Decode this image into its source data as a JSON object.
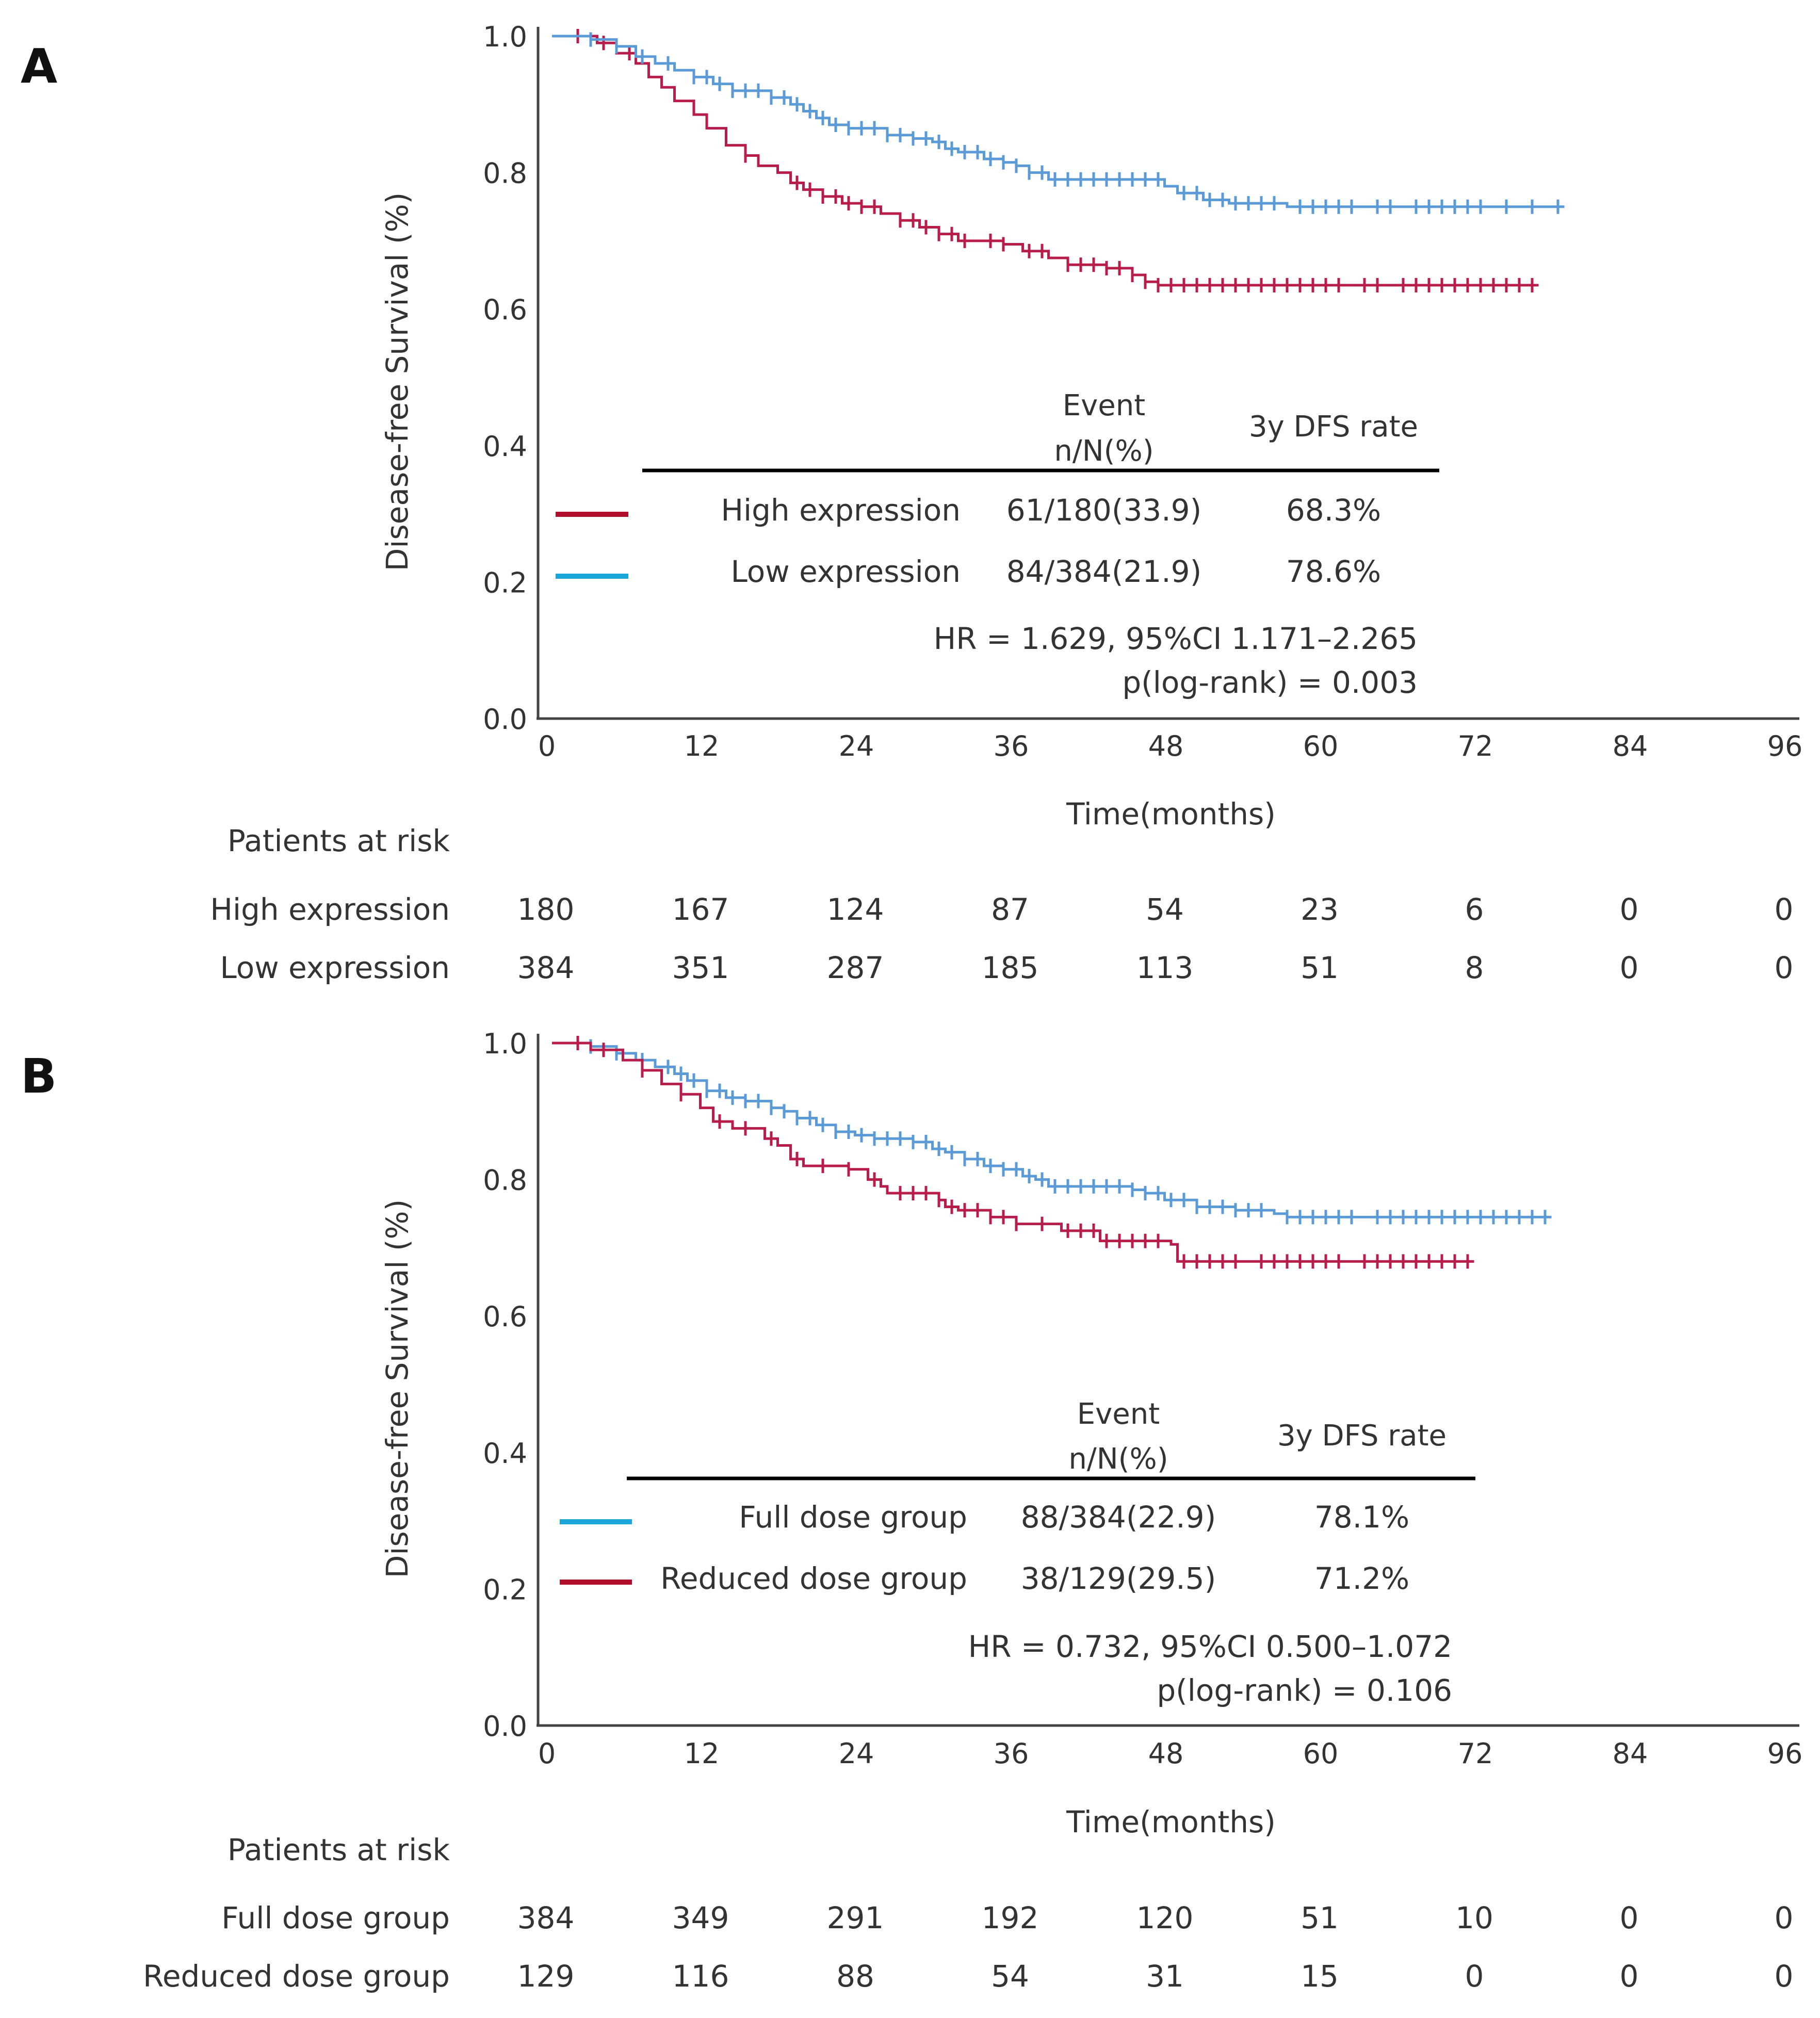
{
  "chart_data": [
    {
      "panel": "A",
      "type": "line",
      "subtype": "kaplan-meier",
      "xlabel": "Time(months)",
      "ylabel": "Disease-free Survival (%)",
      "xlim": [
        0,
        96
      ],
      "ylim": [
        0,
        1
      ],
      "xticks": [
        "0",
        "12",
        "24",
        "36",
        "48",
        "60",
        "72",
        "84",
        "96"
      ],
      "yticks": [
        "0.0",
        "0.2",
        "0.4",
        "0.6",
        "0.8",
        "1.0"
      ],
      "table_header": {
        "event": "Event",
        "event_sub": "n/N(%)",
        "rate": "3y DFS rate"
      },
      "series": [
        {
          "name": "High expression",
          "color": "#b71c4a",
          "legend_color": "#b0102e",
          "event": "61/180(33.9)",
          "rate": "68.3%",
          "steps": [
            [
              0,
              1.0
            ],
            [
              3.5,
              0.99
            ],
            [
              5,
              0.975
            ],
            [
              6.5,
              0.96
            ],
            [
              7.5,
              0.94
            ],
            [
              8.5,
              0.925
            ],
            [
              9.5,
              0.905
            ],
            [
              11,
              0.885
            ],
            [
              12,
              0.865
            ],
            [
              13.5,
              0.84
            ],
            [
              15,
              0.825
            ],
            [
              16,
              0.81
            ],
            [
              17.5,
              0.8
            ],
            [
              18.5,
              0.785
            ],
            [
              19.5,
              0.775
            ],
            [
              21,
              0.765
            ],
            [
              22.5,
              0.755
            ],
            [
              24,
              0.75
            ],
            [
              25.5,
              0.74
            ],
            [
              27,
              0.73
            ],
            [
              28.5,
              0.72
            ],
            [
              30,
              0.71
            ],
            [
              31.5,
              0.7
            ],
            [
              35,
              0.695
            ],
            [
              36.5,
              0.685
            ],
            [
              38.5,
              0.675
            ],
            [
              40,
              0.665
            ],
            [
              43,
              0.66
            ],
            [
              45,
              0.65
            ],
            [
              46,
              0.64
            ],
            [
              47,
              0.635
            ],
            [
              76.5,
              0.635
            ]
          ],
          "censors": [
            2,
            4,
            6,
            15,
            19,
            20,
            21,
            22,
            23,
            24,
            25,
            27,
            28,
            29,
            30,
            31,
            32,
            34,
            35,
            37,
            38,
            40,
            41,
            42,
            43,
            44,
            45,
            46,
            47,
            48,
            49,
            50,
            51,
            52,
            53,
            54,
            55,
            56,
            57,
            58,
            59,
            60,
            61,
            63,
            64,
            66,
            67,
            68,
            69,
            70,
            71,
            72,
            73,
            74,
            75,
            76
          ]
        },
        {
          "name": "Low expression",
          "color": "#5a9ad6",
          "legend_color": "#1aa6d8",
          "event": "84/384(21.9)",
          "rate": "78.6%",
          "steps": [
            [
              0,
              1.0
            ],
            [
              3,
              0.995
            ],
            [
              5,
              0.985
            ],
            [
              6.5,
              0.97
            ],
            [
              8,
              0.96
            ],
            [
              9.5,
              0.95
            ],
            [
              11,
              0.94
            ],
            [
              12.5,
              0.93
            ],
            [
              14,
              0.92
            ],
            [
              17,
              0.91
            ],
            [
              18.5,
              0.9
            ],
            [
              19.5,
              0.89
            ],
            [
              20.5,
              0.88
            ],
            [
              21.5,
              0.87
            ],
            [
              23,
              0.865
            ],
            [
              26,
              0.855
            ],
            [
              28,
              0.85
            ],
            [
              29.5,
              0.845
            ],
            [
              30.5,
              0.835
            ],
            [
              31.5,
              0.83
            ],
            [
              33.5,
              0.82
            ],
            [
              35,
              0.815
            ],
            [
              36,
              0.81
            ],
            [
              37,
              0.8
            ],
            [
              38.5,
              0.79
            ],
            [
              47.5,
              0.78
            ],
            [
              48.5,
              0.77
            ],
            [
              50.5,
              0.76
            ],
            [
              52.5,
              0.755
            ],
            [
              57,
              0.75
            ],
            [
              78.5,
              0.75
            ]
          ],
          "censors": [
            3,
            5,
            7,
            9,
            11,
            12,
            13,
            14,
            15,
            16,
            17,
            18,
            19,
            20,
            21,
            22,
            23,
            24,
            25,
            26,
            27,
            28,
            29,
            30,
            31,
            32,
            33,
            34,
            35,
            36,
            37,
            38,
            39,
            40,
            41,
            42,
            43,
            44,
            45,
            46,
            47,
            49,
            50,
            51,
            52,
            53,
            54,
            55,
            56,
            58,
            59,
            60,
            61,
            62,
            64,
            65,
            67,
            68,
            69,
            70,
            71,
            72,
            74,
            76,
            78
          ]
        }
      ],
      "stats_line1": "HR = 1.629, 95%CI 1.171–2.265",
      "stats_line2": "p(log-rank) = 0.003",
      "risk_title": "Patients at risk",
      "risk_rows": [
        {
          "label": "High expression",
          "values": [
            "180",
            "167",
            "124",
            "87",
            "54",
            "23",
            "6",
            "0",
            "0"
          ]
        },
        {
          "label": "Low expression",
          "values": [
            "384",
            "351",
            "287",
            "185",
            "113",
            "51",
            "8",
            "0",
            "0"
          ]
        }
      ]
    },
    {
      "panel": "B",
      "type": "line",
      "subtype": "kaplan-meier",
      "xlabel": "Time(months)",
      "ylabel": "Disease-free Survival (%)",
      "xlim": [
        0,
        96
      ],
      "ylim": [
        0,
        1
      ],
      "xticks": [
        "0",
        "12",
        "24",
        "36",
        "48",
        "60",
        "72",
        "84",
        "96"
      ],
      "yticks": [
        "0.0",
        "0.2",
        "0.4",
        "0.6",
        "0.8",
        "1.0"
      ],
      "table_header": {
        "event": "Event",
        "event_sub": "n/N(%)",
        "rate": "3y DFS rate"
      },
      "series": [
        {
          "name": "Full dose group",
          "color": "#5a9ad6",
          "legend_color": "#1aa6d8",
          "event": "88/384(22.9)",
          "rate": "78.1%",
          "steps": [
            [
              0,
              1.0
            ],
            [
              3,
              0.995
            ],
            [
              5,
              0.985
            ],
            [
              6.5,
              0.975
            ],
            [
              8,
              0.965
            ],
            [
              9.5,
              0.955
            ],
            [
              10.5,
              0.945
            ],
            [
              12,
              0.93
            ],
            [
              13.5,
              0.92
            ],
            [
              15,
              0.915
            ],
            [
              17,
              0.905
            ],
            [
              18,
              0.9
            ],
            [
              19,
              0.89
            ],
            [
              20.5,
              0.88
            ],
            [
              22,
              0.87
            ],
            [
              23.5,
              0.865
            ],
            [
              25,
              0.86
            ],
            [
              28,
              0.855
            ],
            [
              29.5,
              0.845
            ],
            [
              30.5,
              0.84
            ],
            [
              32,
              0.83
            ],
            [
              33.5,
              0.82
            ],
            [
              35,
              0.815
            ],
            [
              36.5,
              0.805
            ],
            [
              37.5,
              0.8
            ],
            [
              38.5,
              0.79
            ],
            [
              45,
              0.785
            ],
            [
              46,
              0.78
            ],
            [
              47.5,
              0.77
            ],
            [
              50,
              0.76
            ],
            [
              53,
              0.755
            ],
            [
              56,
              0.75
            ],
            [
              57,
              0.745
            ],
            [
              77.5,
              0.745
            ]
          ],
          "censors": [
            3,
            5,
            7,
            9,
            10,
            11,
            12,
            13,
            14,
            15,
            16,
            17,
            18,
            19,
            20,
            21,
            22,
            23,
            24,
            25,
            26,
            27,
            28,
            29,
            30,
            31,
            32,
            33,
            34,
            35,
            36,
            37,
            38,
            39,
            40,
            41,
            42,
            43,
            44,
            45,
            46,
            47,
            48,
            49,
            50,
            51,
            52,
            53,
            54,
            55,
            57,
            58,
            59,
            60,
            61,
            62,
            64,
            65,
            66,
            67,
            68,
            69,
            70,
            71,
            72,
            73,
            74,
            75,
            76,
            77
          ]
        },
        {
          "name": "Reduced dose group",
          "color": "#b71c4a",
          "legend_color": "#b0102e",
          "event": "38/129(29.5)",
          "rate": "71.2%",
          "steps": [
            [
              0,
              1.0
            ],
            [
              3,
              0.99
            ],
            [
              5.5,
              0.975
            ],
            [
              7,
              0.96
            ],
            [
              8.5,
              0.94
            ],
            [
              10,
              0.925
            ],
            [
              11.5,
              0.905
            ],
            [
              12.5,
              0.885
            ],
            [
              14,
              0.875
            ],
            [
              16.5,
              0.86
            ],
            [
              17.5,
              0.85
            ],
            [
              18.5,
              0.83
            ],
            [
              19.5,
              0.82
            ],
            [
              23,
              0.815
            ],
            [
              24.5,
              0.8
            ],
            [
              25.5,
              0.79
            ],
            [
              26,
              0.78
            ],
            [
              30,
              0.77
            ],
            [
              30.5,
              0.76
            ],
            [
              31.5,
              0.755
            ],
            [
              34,
              0.745
            ],
            [
              36,
              0.735
            ],
            [
              39.5,
              0.725
            ],
            [
              42.5,
              0.71
            ],
            [
              48,
              0.705
            ],
            [
              48.5,
              0.68
            ],
            [
              71.5,
              0.68
            ]
          ],
          "censors": [
            2,
            4,
            7,
            10,
            13,
            15,
            17,
            19,
            21,
            23,
            25,
            27,
            28,
            29,
            30,
            31,
            32,
            33,
            34,
            35,
            36,
            38,
            40,
            41,
            42,
            43,
            44,
            45,
            46,
            47,
            49,
            50,
            51,
            52,
            53,
            55,
            56,
            57,
            58,
            59,
            60,
            61,
            63,
            64,
            65,
            66,
            67,
            68,
            69,
            70,
            71
          ]
        }
      ],
      "stats_line1": "HR = 0.732, 95%CI 0.500–1.072",
      "stats_line2": "p(log-rank) = 0.106",
      "risk_title": "Patients at risk",
      "risk_rows": [
        {
          "label": "Full dose group",
          "values": [
            "384",
            "349",
            "291",
            "192",
            "120",
            "51",
            "10",
            "0",
            "0"
          ]
        },
        {
          "label": "Reduced dose group",
          "values": [
            "129",
            "116",
            "88",
            "54",
            "31",
            "15",
            "0",
            "0",
            "0"
          ]
        }
      ]
    }
  ]
}
